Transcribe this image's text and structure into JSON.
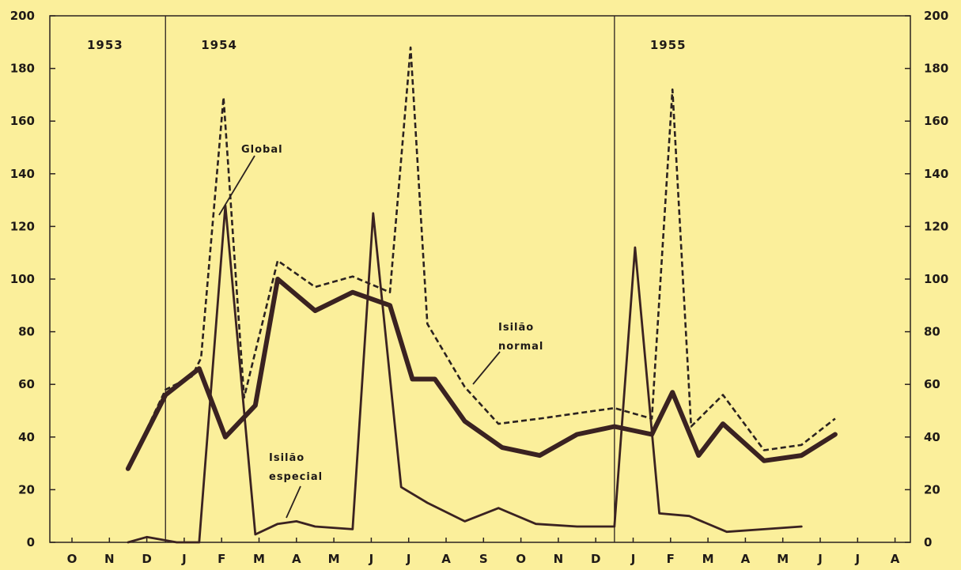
{
  "chart_data": {
    "type": "line",
    "title": "",
    "xlabel": "",
    "ylabel": "",
    "ylim": [
      0,
      200
    ],
    "yticks": [
      0,
      20,
      40,
      60,
      80,
      100,
      120,
      140,
      160,
      180,
      200
    ],
    "grid": false,
    "months": [
      "O",
      "N",
      "D",
      "J",
      "F",
      "M",
      "A",
      "M",
      "J",
      "J",
      "A",
      "S",
      "O",
      "N",
      "D",
      "J",
      "F",
      "M",
      "A",
      "M",
      "J",
      "J",
      "A"
    ],
    "years": [
      {
        "label": "1953",
        "month_index": 0
      },
      {
        "label": "1954",
        "month_index": 3
      },
      {
        "label": "1955",
        "month_index": 15
      }
    ],
    "series": [
      {
        "name": "Global",
        "style": "dashed",
        "color": "#2b2220",
        "points": [
          {
            "x": 1.5,
            "y": 28
          },
          {
            "x": 2.5,
            "y": 58
          },
          {
            "x": 3.2,
            "y": 63
          },
          {
            "x": 3.45,
            "y": 70
          },
          {
            "x": 4.05,
            "y": 169
          },
          {
            "x": 4.6,
            "y": 55
          },
          {
            "x": 5.5,
            "y": 107
          },
          {
            "x": 6.5,
            "y": 97
          },
          {
            "x": 7.5,
            "y": 101
          },
          {
            "x": 8.5,
            "y": 95
          },
          {
            "x": 9.05,
            "y": 188
          },
          {
            "x": 9.5,
            "y": 83
          },
          {
            "x": 10.5,
            "y": 59
          },
          {
            "x": 11.4,
            "y": 45
          },
          {
            "x": 12.5,
            "y": 47
          },
          {
            "x": 13.5,
            "y": 49
          },
          {
            "x": 14.5,
            "y": 51
          },
          {
            "x": 15.5,
            "y": 47
          },
          {
            "x": 16.05,
            "y": 172
          },
          {
            "x": 16.55,
            "y": 44
          },
          {
            "x": 17.4,
            "y": 56
          },
          {
            "x": 18.5,
            "y": 35
          },
          {
            "x": 19.5,
            "y": 37
          },
          {
            "x": 20.4,
            "y": 47
          }
        ]
      },
      {
        "name": "Isilão normal",
        "style": "thick",
        "color": "#3a2221",
        "points": [
          {
            "x": 1.5,
            "y": 28
          },
          {
            "x": 2.5,
            "y": 56
          },
          {
            "x": 3.4,
            "y": 66
          },
          {
            "x": 4.1,
            "y": 40
          },
          {
            "x": 4.9,
            "y": 52
          },
          {
            "x": 5.5,
            "y": 100
          },
          {
            "x": 6.5,
            "y": 88
          },
          {
            "x": 7.5,
            "y": 95
          },
          {
            "x": 8.5,
            "y": 90
          },
          {
            "x": 9.1,
            "y": 62
          },
          {
            "x": 9.7,
            "y": 62
          },
          {
            "x": 10.5,
            "y": 46
          },
          {
            "x": 11.5,
            "y": 36
          },
          {
            "x": 12.5,
            "y": 33
          },
          {
            "x": 13.5,
            "y": 41
          },
          {
            "x": 14.5,
            "y": 44
          },
          {
            "x": 15.5,
            "y": 41
          },
          {
            "x": 16.05,
            "y": 57
          },
          {
            "x": 16.75,
            "y": 33
          },
          {
            "x": 17.4,
            "y": 45
          },
          {
            "x": 18.5,
            "y": 31
          },
          {
            "x": 19.5,
            "y": 33
          },
          {
            "x": 20.4,
            "y": 41
          }
        ]
      },
      {
        "name": "Isilão especial",
        "style": "thin",
        "color": "#3a2221",
        "points": [
          {
            "x": 1.5,
            "y": 0
          },
          {
            "x": 2.0,
            "y": 2
          },
          {
            "x": 2.8,
            "y": 0
          },
          {
            "x": 3.4,
            "y": 0
          },
          {
            "x": 4.1,
            "y": 128
          },
          {
            "x": 4.9,
            "y": 3
          },
          {
            "x": 5.5,
            "y": 7
          },
          {
            "x": 6.0,
            "y": 8
          },
          {
            "x": 6.5,
            "y": 6
          },
          {
            "x": 7.5,
            "y": 5
          },
          {
            "x": 8.05,
            "y": 125
          },
          {
            "x": 8.8,
            "y": 21
          },
          {
            "x": 9.5,
            "y": 15
          },
          {
            "x": 10.5,
            "y": 8
          },
          {
            "x": 11.4,
            "y": 13
          },
          {
            "x": 12.4,
            "y": 7
          },
          {
            "x": 13.5,
            "y": 6
          },
          {
            "x": 14.5,
            "y": 6
          },
          {
            "x": 15.05,
            "y": 112
          },
          {
            "x": 15.7,
            "y": 11
          },
          {
            "x": 16.5,
            "y": 10
          },
          {
            "x": 17.5,
            "y": 4
          },
          {
            "x": 18.5,
            "y": 5
          },
          {
            "x": 19.5,
            "y": 6
          }
        ]
      }
    ],
    "annotations": [
      {
        "lines": [
          "Global"
        ],
        "series_index": 0
      },
      {
        "lines": [
          "Isilão",
          "normal"
        ],
        "series_index": 1
      },
      {
        "lines": [
          "Isilão",
          "especial"
        ],
        "series_index": 2
      }
    ]
  }
}
